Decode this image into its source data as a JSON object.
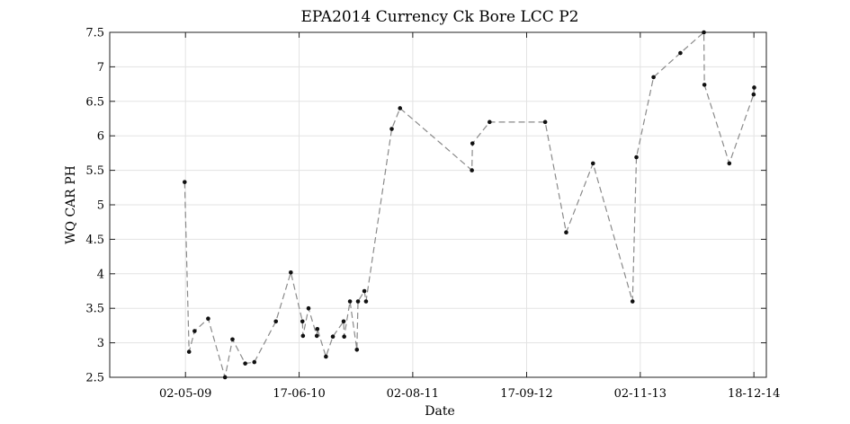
{
  "chart_data": {
    "type": "line",
    "title": "EPA2014 Currency Ck Bore LCC P2",
    "xlabel": "Date",
    "ylabel": "WQ CAR PH",
    "x_is_date": true,
    "xlim": [
      "2008-08-01",
      "2015-02-01"
    ],
    "ylim": [
      2.5,
      7.5
    ],
    "grid": true,
    "xticks": [
      {
        "label": "02-05-09",
        "date": "2009-05-02"
      },
      {
        "label": "17-06-10",
        "date": "2010-06-17"
      },
      {
        "label": "02-08-11",
        "date": "2011-08-02"
      },
      {
        "label": "17-09-12",
        "date": "2012-09-17"
      },
      {
        "label": "02-11-13",
        "date": "2013-11-02"
      },
      {
        "label": "18-12-14",
        "date": "2014-12-18"
      }
    ],
    "yticks": [
      {
        "label": "2.5",
        "value": 2.5
      },
      {
        "label": "3",
        "value": 3
      },
      {
        "label": "3.5",
        "value": 3.5
      },
      {
        "label": "4",
        "value": 4
      },
      {
        "label": "4.5",
        "value": 4.5
      },
      {
        "label": "5",
        "value": 5
      },
      {
        "label": "5.5",
        "value": 5.5
      },
      {
        "label": "6",
        "value": 6
      },
      {
        "label": "6.5",
        "value": 6.5
      },
      {
        "label": "7",
        "value": 7
      },
      {
        "label": "7.5",
        "value": 7.5
      }
    ],
    "series": [
      {
        "color": "#8a8a8a",
        "marker_color": "#111111",
        "line_style": "dashed",
        "x": [
          "2009-04-29",
          "2009-05-15",
          "2009-06-04",
          "2009-07-23",
          "2009-09-22",
          "2009-10-19",
          "2009-12-04",
          "2010-01-06",
          "2010-03-25",
          "2010-05-18",
          "2010-06-29",
          "2010-07-01",
          "2010-07-21",
          "2010-08-20",
          "2010-08-22",
          "2010-09-22",
          "2010-10-17",
          "2010-11-25",
          "2010-11-27",
          "2010-12-18",
          "2011-01-12",
          "2011-01-16",
          "2011-02-08",
          "2011-02-14",
          "2011-05-18",
          "2011-06-17",
          "2012-03-03",
          "2012-03-05",
          "2012-05-06",
          "2012-11-23",
          "2013-02-07",
          "2013-05-15",
          "2013-10-05",
          "2013-10-19",
          "2013-12-20",
          "2014-03-27",
          "2014-06-20",
          "2014-06-22",
          "2014-09-20",
          "2014-12-17",
          "2014-12-19"
        ],
        "y": [
          5.33,
          2.87,
          3.17,
          3.35,
          2.5,
          3.05,
          2.7,
          2.72,
          3.31,
          4.02,
          3.31,
          3.1,
          3.5,
          3.1,
          3.2,
          2.8,
          3.09,
          3.31,
          3.09,
          3.6,
          2.9,
          3.6,
          3.75,
          3.6,
          6.1,
          6.4,
          5.5,
          5.89,
          6.2,
          6.2,
          4.6,
          5.6,
          3.6,
          5.69,
          6.85,
          7.2,
          7.5,
          6.74,
          5.6,
          6.6,
          6.7
        ]
      }
    ]
  }
}
